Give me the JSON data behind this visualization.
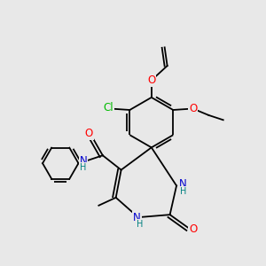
{
  "bg_color": "#e8e8e8",
  "bond_color": "#000000",
  "atom_colors": {
    "O": "#ff0000",
    "N": "#0000cd",
    "Cl": "#00bb00",
    "H": "#008080",
    "C": "#000000"
  },
  "font_size": 8.5,
  "line_width": 1.3,
  "dbo": 0.012,
  "figsize": [
    3.0,
    3.0
  ],
  "dpi": 100
}
